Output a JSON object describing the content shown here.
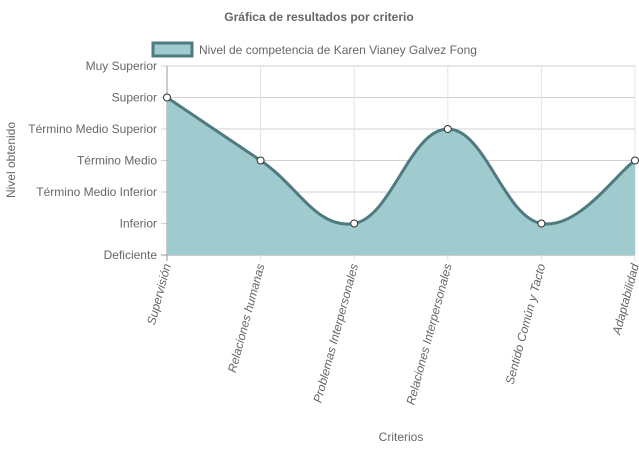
{
  "chart_data": {
    "type": "area",
    "title": "Gráfica de resultados por criterio",
    "xlabel": "Criterios",
    "ylabel": "Nivel obtenido",
    "categories": [
      "Supervisión",
      "Relaciones humanas",
      "Problemas Interpersonales",
      "Relaciones Interpersonales",
      "Sentido Común y Tacto",
      "Adaptabilidad"
    ],
    "y_levels": [
      "Deficiente",
      "Inferior",
      "Término Medio Inferior",
      "Término Medio",
      "Término Medio Superior",
      "Superior",
      "Muy Superior"
    ],
    "ylim": [
      0,
      6
    ],
    "grid": true,
    "legend_position": "top",
    "series": [
      {
        "name": "Nivel de competencia de Karen Vianey Galvez Fong",
        "values": [
          5,
          3,
          1,
          4,
          1,
          3
        ],
        "value_labels": [
          "Superior",
          "Término Medio",
          "Inferior",
          "Término Medio Superior",
          "Inferior",
          "Término Medio"
        ],
        "fill_color": "#9fcbcf",
        "line_color": "#4f7a80"
      }
    ]
  }
}
